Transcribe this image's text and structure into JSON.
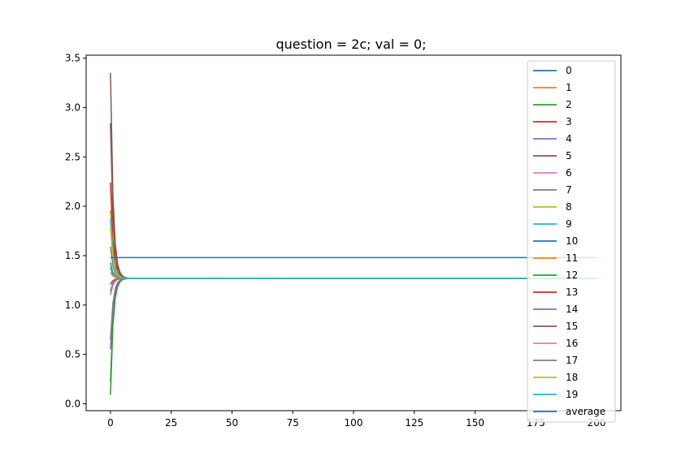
{
  "chart_data": {
    "type": "line",
    "title": "question = 2c; val = 0;",
    "xlabel": "",
    "ylabel": "",
    "xlim": [
      -10,
      210
    ],
    "ylim": [
      -0.07,
      3.53
    ],
    "xticks": [
      0,
      25,
      50,
      75,
      100,
      125,
      150,
      175,
      200
    ],
    "yticks": [
      0.0,
      0.5,
      1.0,
      1.5,
      2.0,
      2.5,
      3.0,
      3.5
    ],
    "xtick_labels": [
      "0",
      "25",
      "50",
      "75",
      "100",
      "125",
      "150",
      "175",
      "200"
    ],
    "ytick_labels": [
      "0.0",
      "0.5",
      "1.0",
      "1.5",
      "2.0",
      "2.5",
      "3.0",
      "3.5"
    ],
    "grid": false,
    "legend_position": "top-right",
    "x_range": [
      0,
      200
    ],
    "converged_value": 1.27,
    "convergence_steps": 8,
    "series": [
      {
        "name": "0",
        "color": "#1f77b4",
        "start": 1.38
      },
      {
        "name": "1",
        "color": "#ff7f0e",
        "start": 1.96
      },
      {
        "name": "2",
        "color": "#2ca02c",
        "start": 0.09
      },
      {
        "name": "3",
        "color": "#d62728",
        "start": 2.24
      },
      {
        "name": "4",
        "color": "#9467bd",
        "start": 0.55
      },
      {
        "name": "5",
        "color": "#8c564b",
        "start": 3.35
      },
      {
        "name": "6",
        "color": "#e377c2",
        "start": 1.1
      },
      {
        "name": "7",
        "color": "#7f7f7f",
        "start": 1.59
      },
      {
        "name": "8",
        "color": "#bcbd22",
        "start": 1.93
      },
      {
        "name": "9",
        "color": "#17becf",
        "start": 1.87
      },
      {
        "name": "10",
        "color": "#1f77b4",
        "start": 1.43
      },
      {
        "name": "11",
        "color": "#ff7f0e",
        "start": 1.33
      },
      {
        "name": "12",
        "color": "#2ca02c",
        "start": 0.22
      },
      {
        "name": "13",
        "color": "#d62728",
        "start": 1.21
      },
      {
        "name": "14",
        "color": "#9467bd",
        "start": 0.65
      },
      {
        "name": "15",
        "color": "#8c564b",
        "start": 2.84
      },
      {
        "name": "16",
        "color": "#e377c2",
        "start": 1.15
      },
      {
        "name": "17",
        "color": "#7f7f7f",
        "start": 1.13
      },
      {
        "name": "18",
        "color": "#bcbd22",
        "start": 1.78
      },
      {
        "name": "19",
        "color": "#17becf",
        "start": 1.42
      },
      {
        "name": "average",
        "color": "#1f77b4",
        "start": 1.48,
        "constant": 1.48
      }
    ]
  }
}
